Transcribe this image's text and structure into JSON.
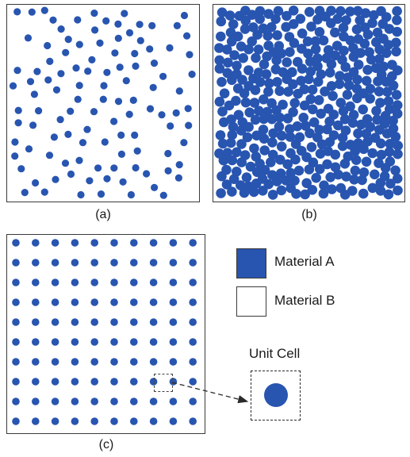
{
  "colors": {
    "material_a": "#2855b0",
    "material_b": "#ffffff",
    "border": "#3a3a3a"
  },
  "captions": {
    "a": "(a)",
    "b": "(b)",
    "c": "(c)"
  },
  "legend": {
    "material_a": "Material A",
    "material_b": "Material B"
  },
  "unit_cell": {
    "title": "Unit Cell"
  },
  "panels": {
    "a": {
      "arrangement": "random sparse",
      "particles": 110
    },
    "b": {
      "arrangement": "random dense",
      "particles": 520
    },
    "c": {
      "arrangement": "square lattice",
      "rows": 10,
      "cols": 10,
      "highlighted": "row 8, col 8"
    }
  }
}
